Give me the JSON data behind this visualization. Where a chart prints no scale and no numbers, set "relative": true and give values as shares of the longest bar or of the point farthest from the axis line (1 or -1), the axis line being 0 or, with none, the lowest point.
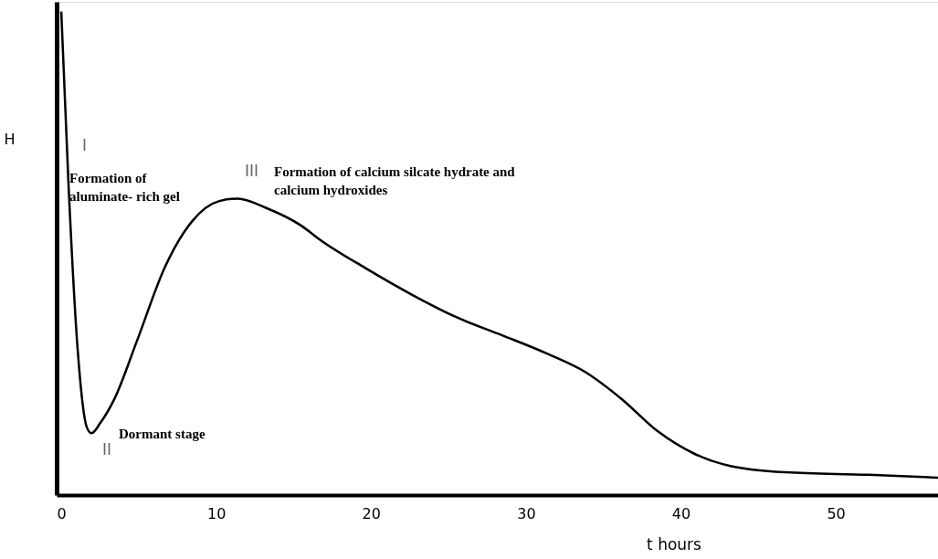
{
  "chart_data": {
    "type": "line",
    "relative": true,
    "xlabel": "t hours",
    "ylabel": "H",
    "x": [
      0,
      0.47,
      1.06,
      1.65,
      1.95,
      2.54,
      3.42,
      4.9,
      6.67,
      8.44,
      10.2,
      11.4,
      13.2,
      15.5,
      16.7,
      19.6,
      22.6,
      25.5,
      28.5,
      31.4,
      33.8,
      36.2,
      38.5,
      40.9,
      43.2,
      46.8,
      52.1,
      56.6
    ],
    "series": [
      {
        "color": "#000000",
        "values": [
          1,
          0.64,
          0.3,
          0.14,
          0.128,
          0.15,
          0.198,
          0.32,
          0.47,
          0.566,
          0.608,
          0.613,
          0.594,
          0.557,
          0.528,
          0.47,
          0.415,
          0.368,
          0.33,
          0.292,
          0.255,
          0.198,
          0.132,
          0.085,
          0.06,
          0.047,
          0.042,
          0.036
        ]
      }
    ],
    "xlim": [
      -0.3,
      56.6
    ],
    "xticks": [
      0,
      10,
      20,
      30,
      40,
      50
    ],
    "grid": false,
    "marker": "none",
    "line_style": "solid",
    "annotations": [
      "I",
      "Formation of\naluminate- rich gel",
      "II",
      "Dormant stage",
      "III",
      "Formation of calcium silcate hydrate and\ncalcium hydroxides"
    ]
  }
}
